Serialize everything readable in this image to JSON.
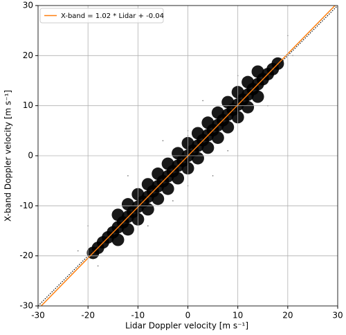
{
  "chart_data": {
    "type": "scatter",
    "xlabel": "Lidar Doppler velocity [m s⁻¹]",
    "ylabel": "X-band Doppler velocity [m s⁻¹]",
    "xlim": [
      -30,
      30
    ],
    "ylim": [
      -30,
      30
    ],
    "xticks": [
      -30,
      -20,
      -10,
      0,
      10,
      20,
      30
    ],
    "yticks": [
      -30,
      -20,
      -10,
      0,
      10,
      20,
      30
    ],
    "grid": true,
    "series": [
      {
        "color": "#000000",
        "x": [
          -19,
          -18,
          -17,
          -16,
          -15,
          -14,
          -13,
          -12,
          -11,
          -10,
          -9,
          -8,
          -7,
          -6,
          -5,
          -4,
          -3,
          -2,
          -1,
          0,
          1,
          2,
          3,
          4,
          5,
          6,
          7,
          8,
          9,
          10,
          11,
          12,
          13,
          14,
          15,
          16,
          17,
          18,
          -14,
          -14,
          -12,
          -12,
          -10,
          -10,
          -8,
          -8,
          -6,
          -6,
          -4,
          -4,
          -2,
          -2,
          0,
          0,
          2,
          2,
          4,
          4,
          6,
          6,
          8,
          8,
          10,
          10,
          12,
          12,
          14,
          14
        ],
        "values": [
          -19.4,
          -18.4,
          -17.3,
          -16.3,
          -15.3,
          -14.3,
          -13.3,
          -12.2,
          -11.2,
          -10.2,
          -9.2,
          -8.2,
          -7.1,
          -6.1,
          -5.1,
          -4.1,
          -3.1,
          -2.0,
          -1.0,
          0.0,
          1.0,
          2.0,
          3.1,
          4.1,
          5.1,
          6.1,
          7.1,
          8.2,
          9.2,
          10.2,
          11.2,
          12.2,
          13.3,
          14.3,
          15.3,
          16.3,
          17.3,
          18.4,
          -16.8,
          -11.8,
          -14.7,
          -9.7,
          -12.7,
          -7.7,
          -10.7,
          -5.7,
          -8.6,
          -3.6,
          -6.6,
          -1.6,
          -4.5,
          0.5,
          -2.5,
          2.5,
          -0.5,
          4.5,
          1.6,
          6.6,
          3.6,
          8.6,
          5.7,
          10.7,
          7.7,
          12.7,
          9.7,
          14.7,
          11.8,
          16.8
        ]
      },
      {
        "color": "#000000",
        "x": [
          -5,
          -8,
          5,
          0,
          0,
          -3,
          8,
          -20,
          10,
          20,
          -22,
          3,
          0,
          0,
          -12,
          16,
          -18,
          21
        ],
        "values": [
          3,
          -14,
          -4,
          5,
          -6,
          -9,
          1,
          -14,
          16,
          24,
          -19,
          11,
          -3,
          4,
          -4,
          10,
          -22,
          20
        ]
      }
    ],
    "fit": {
      "slope": 1.02,
      "intercept": -0.04,
      "color": "#ff7f0e",
      "label": "X-band = 1.02 * Lidar + -0.04"
    },
    "identity_line": true,
    "legend": "upper left"
  }
}
